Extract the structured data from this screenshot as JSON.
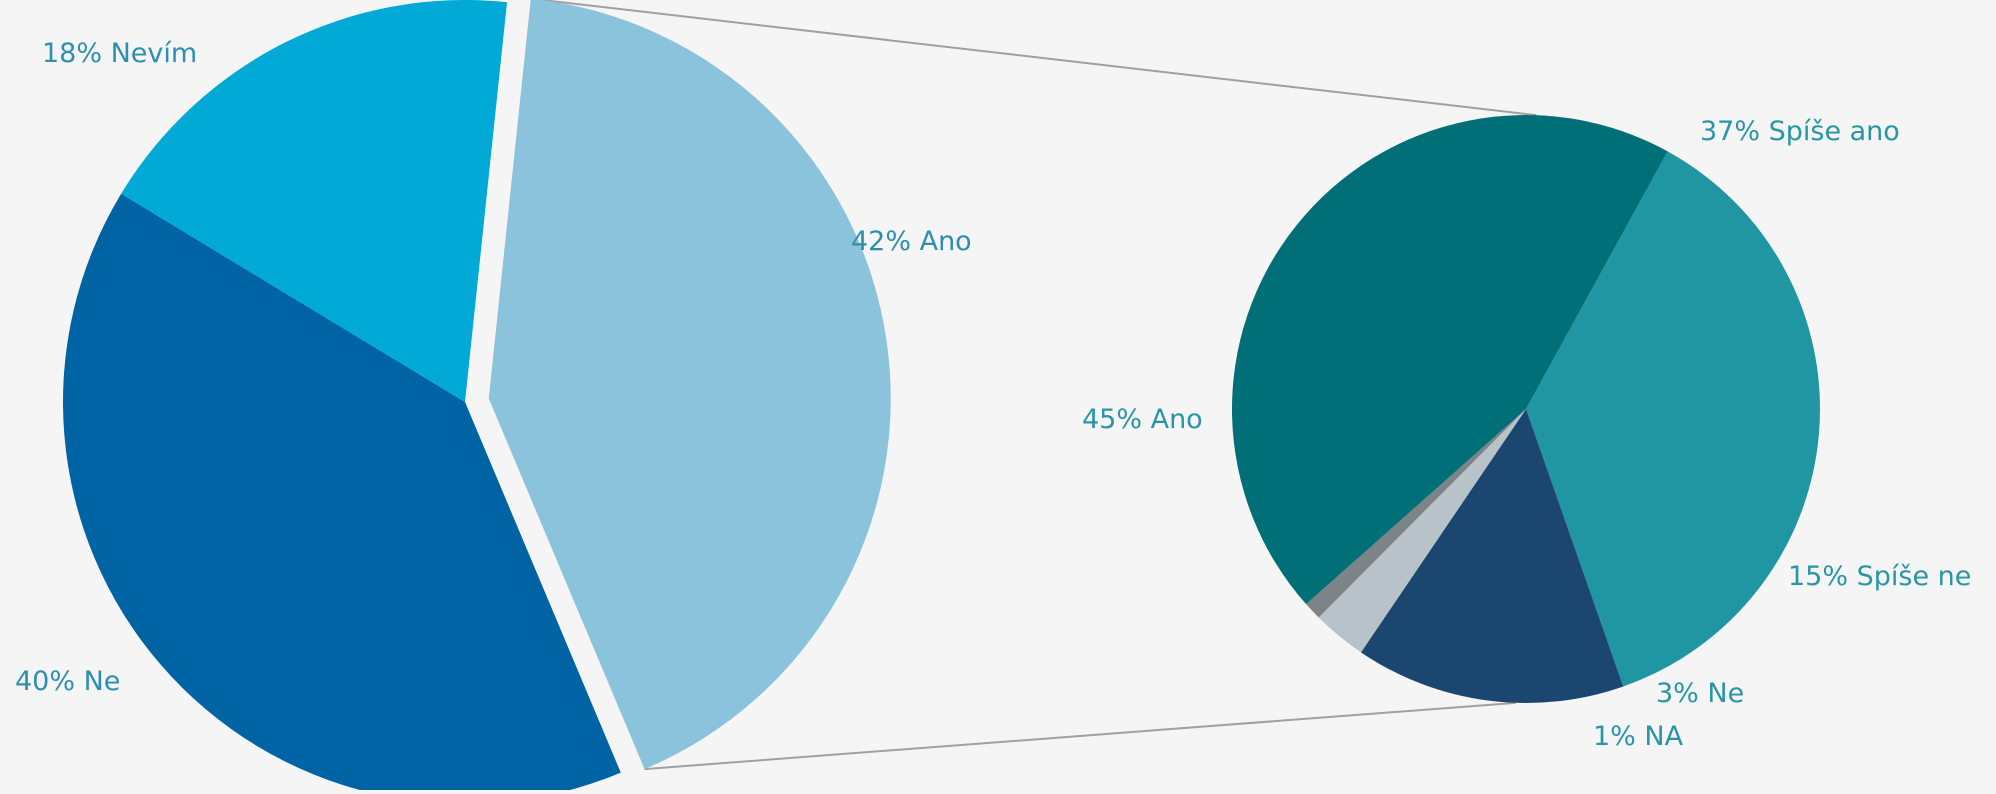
{
  "chart_data": [
    {
      "type": "pie",
      "title": "",
      "label_color": "#2d8fb0",
      "slices": [
        {
          "label": "Ano",
          "value": 42,
          "text": "42% Ano",
          "color": "#8bc3dd",
          "exploded": true
        },
        {
          "label": "Ne",
          "value": 40,
          "text": "40% Ne",
          "color": "#0063a4"
        },
        {
          "label": "Nevím",
          "value": 18,
          "text": "18% Nevím",
          "color": "#00a9d6"
        }
      ]
    },
    {
      "type": "pie",
      "title": "",
      "breakdown_of": "Ano",
      "label_color": "#2896a6",
      "slices": [
        {
          "label": "Spíše ano",
          "value": 37,
          "text": "37% Spíše ano",
          "color": "#2196a3"
        },
        {
          "label": "Spíše ne",
          "value": 15,
          "text": "15% Spíše ne",
          "color": "#1a4670"
        },
        {
          "label": "Ne",
          "value": 3,
          "text": "3% Ne",
          "color": "#b8c3c9"
        },
        {
          "label": "NA",
          "value": 1,
          "text": "1% NA",
          "color": "#7d8487"
        },
        {
          "label": "Ano",
          "value": 45,
          "text": "45% Ano",
          "color": "#006f78"
        }
      ]
    }
  ],
  "colors": {
    "background": "#f5f5f5",
    "connector": "#a0a0a0"
  }
}
